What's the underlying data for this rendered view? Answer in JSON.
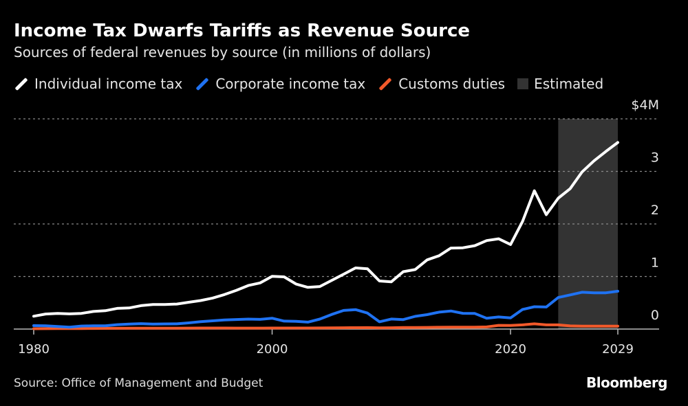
{
  "chart_data": {
    "type": "line",
    "title": "Income Tax Dwarfs Tariffs as Revenue Source",
    "subtitle": "Sources of federal revenues by source (in millions of dollars)",
    "source": "Source: Office of Management and Budget",
    "brand": "Bloomberg",
    "x": [
      1980,
      1981,
      1982,
      1983,
      1984,
      1985,
      1986,
      1987,
      1988,
      1989,
      1990,
      1991,
      1992,
      1993,
      1994,
      1995,
      1996,
      1997,
      1998,
      1999,
      2000,
      2001,
      2002,
      2003,
      2004,
      2005,
      2006,
      2007,
      2008,
      2009,
      2010,
      2011,
      2012,
      2013,
      2014,
      2015,
      2016,
      2017,
      2018,
      2019,
      2020,
      2021,
      2022,
      2023,
      2024,
      2025,
      2026,
      2027,
      2028,
      2029
    ],
    "series": [
      {
        "name": "Individual income tax",
        "color": "#ffffff",
        "values": [
          0.244,
          0.286,
          0.298,
          0.289,
          0.298,
          0.335,
          0.349,
          0.393,
          0.401,
          0.446,
          0.467,
          0.468,
          0.476,
          0.51,
          0.543,
          0.59,
          0.656,
          0.737,
          0.829,
          0.879,
          1.004,
          0.994,
          0.858,
          0.794,
          0.809,
          0.927,
          1.044,
          1.163,
          1.146,
          0.915,
          0.899,
          1.092,
          1.132,
          1.316,
          1.395,
          1.541,
          1.546,
          1.587,
          1.684,
          1.718,
          1.609,
          2.044,
          2.632,
          2.176,
          2.49,
          2.67,
          2.99,
          3.2,
          3.38,
          3.55
        ]
      },
      {
        "name": "Corporate income tax",
        "color": "#1f72f2",
        "values": [
          0.065,
          0.061,
          0.049,
          0.037,
          0.057,
          0.061,
          0.063,
          0.084,
          0.095,
          0.103,
          0.094,
          0.098,
          0.1,
          0.118,
          0.14,
          0.157,
          0.172,
          0.182,
          0.189,
          0.184,
          0.207,
          0.151,
          0.148,
          0.132,
          0.189,
          0.278,
          0.354,
          0.37,
          0.304,
          0.138,
          0.191,
          0.181,
          0.242,
          0.274,
          0.321,
          0.344,
          0.3,
          0.297,
          0.205,
          0.23,
          0.212,
          0.372,
          0.425,
          0.42,
          0.6,
          0.65,
          0.7,
          0.69,
          0.69,
          0.72
        ]
      },
      {
        "name": "Customs duties",
        "color": "#f2592a",
        "values": [
          0.007,
          0.008,
          0.009,
          0.009,
          0.011,
          0.012,
          0.013,
          0.015,
          0.016,
          0.016,
          0.017,
          0.016,
          0.017,
          0.018,
          0.02,
          0.019,
          0.019,
          0.018,
          0.018,
          0.018,
          0.02,
          0.019,
          0.019,
          0.02,
          0.021,
          0.023,
          0.025,
          0.026,
          0.028,
          0.022,
          0.025,
          0.03,
          0.03,
          0.032,
          0.034,
          0.035,
          0.035,
          0.035,
          0.041,
          0.071,
          0.069,
          0.08,
          0.1,
          0.08,
          0.08,
          0.06,
          0.055,
          0.055,
          0.055,
          0.055
        ]
      }
    ],
    "shaded": {
      "label": "Estimated",
      "from": 2024,
      "to": 2029,
      "color": "#333333"
    },
    "ylim": [
      0,
      4
    ],
    "yticks": [
      "0",
      "1",
      "2",
      "3",
      "$4M"
    ],
    "yticks_values": [
      0,
      1,
      2,
      3,
      4
    ],
    "xticks": [
      "1980",
      "2000",
      "2020",
      "2029"
    ],
    "xticks_values": [
      1980,
      2000,
      2020,
      2029
    ],
    "grid": true,
    "y_axis_side": "right",
    "legend_placement": "top-left"
  }
}
